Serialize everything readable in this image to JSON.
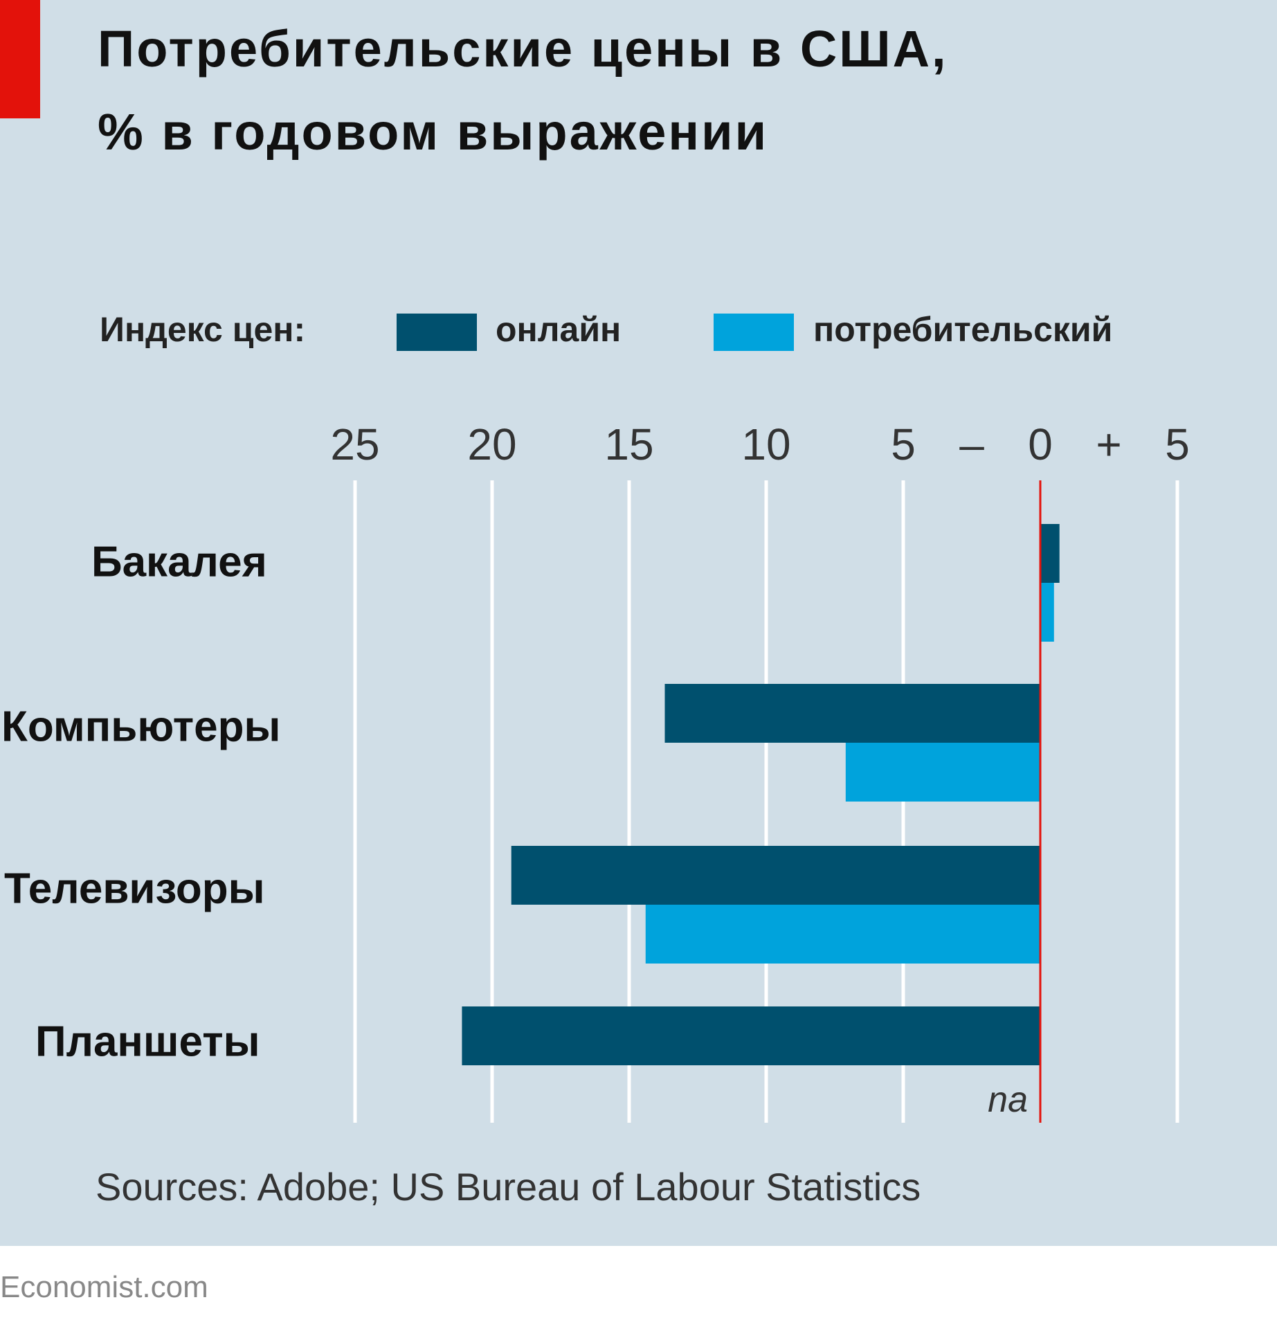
{
  "title_line1": "Потребительские цены в США,",
  "title_line2": "% в годовом выражении",
  "legend": {
    "label": "Индекс цен:",
    "items": [
      "онлайн",
      "потребительский"
    ]
  },
  "source": "Sources: Adobe; US Bureau of Labour Statistics",
  "footer": "Economist.com",
  "colors": {
    "online": "#00506e",
    "cpi": "#00a3dc",
    "zero": "#e3120b",
    "grid": "#ffffff"
  },
  "chart_data": {
    "type": "bar",
    "orientation": "horizontal",
    "title": "Потребительские цены в США, % в годовом выражении",
    "categories": [
      "Бакалея",
      "Компьютеры",
      "Телевизоры",
      "Планшеты"
    ],
    "series": [
      {
        "name": "онлайн",
        "values": [
          0.7,
          -13.7,
          -19.3,
          -21.1
        ]
      },
      {
        "name": "потребительский",
        "values": [
          0.5,
          -7.1,
          -14.4,
          null
        ]
      }
    ],
    "xlim": [
      -25,
      5
    ],
    "ticks": [
      -25,
      -20,
      -15,
      -10,
      -5,
      0,
      5
    ],
    "tick_labels": [
      "25",
      "20",
      "15",
      "10",
      "5",
      "–",
      "0",
      "+",
      "5"
    ],
    "annotations": [
      "na"
    ],
    "grid": true,
    "legend_position": "top"
  }
}
